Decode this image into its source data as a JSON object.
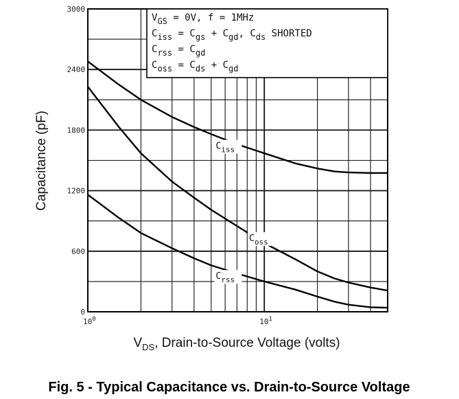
{
  "chart_data": {
    "type": "line",
    "title": "Fig. 5 - Typical Capacitance vs. Drain-to-Source Voltage",
    "xlabel": "VDS, Drain-to-Source Voltage (volts)",
    "xlabel_main": "V",
    "xlabel_sub": "DS",
    "xlabel_rest": ", Drain-to-Source Voltage (volts)",
    "ylabel": "Capacitance (pF)",
    "xscale": "log",
    "xlim": [
      1,
      50
    ],
    "ylim": [
      0,
      3000
    ],
    "grid": true,
    "x_ticks": [
      {
        "value": 1,
        "base": "10",
        "exp": "0"
      },
      {
        "value": 10,
        "base": "10",
        "exp": "1"
      }
    ],
    "y_ticks": [
      {
        "value": 0,
        "label": "0"
      },
      {
        "value": 600,
        "label": "600"
      },
      {
        "value": 1200,
        "label": "1200"
      },
      {
        "value": 1800,
        "label": "1800"
      },
      {
        "value": 2400,
        "label": "2400"
      },
      {
        "value": 3000,
        "label": "3000"
      }
    ],
    "legend": {
      "position": "top-right",
      "lines": [
        "VGS = 0V, f = 1MHz",
        "Ciss = Cgs + Cgd, Cds SHORTED",
        "Crss = Cgd",
        "Coss = Cds + Cgd"
      ]
    },
    "series": [
      {
        "name": "Ciss",
        "label_main": "C",
        "label_sub": "iss",
        "label_at": [
          5.5,
          1615
        ],
        "points": [
          [
            1,
            2480
          ],
          [
            1.5,
            2250
          ],
          [
            2,
            2100
          ],
          [
            3,
            1930
          ],
          [
            4,
            1830
          ],
          [
            5,
            1760
          ],
          [
            7,
            1660
          ],
          [
            10,
            1570
          ],
          [
            15,
            1470
          ],
          [
            20,
            1420
          ],
          [
            25,
            1390
          ],
          [
            30,
            1380
          ],
          [
            40,
            1375
          ],
          [
            50,
            1375
          ]
        ]
      },
      {
        "name": "Coss",
        "label_main": "C",
        "label_sub": "oss",
        "label_at": [
          8.5,
          700
        ],
        "points": [
          [
            1,
            2230
          ],
          [
            1.5,
            1830
          ],
          [
            2,
            1570
          ],
          [
            3,
            1290
          ],
          [
            4,
            1130
          ],
          [
            5,
            1010
          ],
          [
            7,
            850
          ],
          [
            10,
            680
          ],
          [
            15,
            520
          ],
          [
            20,
            400
          ],
          [
            25,
            330
          ],
          [
            30,
            290
          ],
          [
            40,
            240
          ],
          [
            50,
            210
          ]
        ]
      },
      {
        "name": "Crss",
        "label_main": "C",
        "label_sub": "rss",
        "label_at": [
          5.5,
          325
        ],
        "points": [
          [
            1,
            1160
          ],
          [
            1.5,
            930
          ],
          [
            2,
            780
          ],
          [
            3,
            630
          ],
          [
            4,
            530
          ],
          [
            5,
            460
          ],
          [
            7,
            380
          ],
          [
            10,
            300
          ],
          [
            15,
            220
          ],
          [
            20,
            150
          ],
          [
            25,
            100
          ],
          [
            30,
            70
          ],
          [
            40,
            45
          ],
          [
            50,
            40
          ]
        ]
      }
    ]
  }
}
